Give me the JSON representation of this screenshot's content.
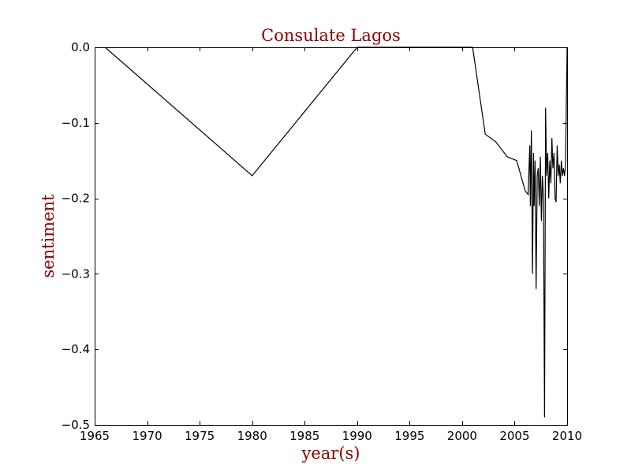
{
  "chart_data": {
    "type": "line",
    "title": "Consulate Lagos",
    "xlabel": "year(s)",
    "ylabel": "sentiment",
    "xlim": [
      1965,
      2010
    ],
    "ylim": [
      -0.5,
      0.0
    ],
    "grid": false,
    "xticks": [
      1965,
      1970,
      1975,
      1980,
      1985,
      1990,
      1995,
      2000,
      2005,
      2010
    ],
    "xtick_labels": [
      "1965",
      "1970",
      "1975",
      "1980",
      "1985",
      "1990",
      "1995",
      "2000",
      "2005",
      "2010"
    ],
    "yticks": [
      0.0,
      -0.1,
      -0.2,
      -0.3,
      -0.4,
      -0.5
    ],
    "ytick_labels": [
      "0.0",
      "−0.1",
      "−0.2",
      "−0.3",
      "−0.4",
      "−0.5"
    ],
    "colors": {
      "line": "#000000",
      "text": "#8b0000"
    },
    "series": [
      {
        "x": [
          1966,
          1980,
          1990,
          2001,
          2002.2,
          2003.2,
          2004.3,
          2005.2,
          2006.0,
          2006.3,
          2006.35,
          2006.45,
          2006.5,
          2006.6,
          2006.7,
          2006.8,
          2006.85,
          2006.95,
          2007.05,
          2007.15,
          2007.25,
          2007.35,
          2007.45,
          2007.55,
          2007.65,
          2007.75,
          2007.85,
          2007.95,
          2008.05,
          2008.15,
          2008.25,
          2008.35,
          2008.45,
          2008.55,
          2008.65,
          2008.75,
          2008.85,
          2008.95,
          2009.05,
          2009.15,
          2009.25,
          2009.35,
          2009.45,
          2009.55,
          2009.65,
          2009.75,
          2009.85,
          2010.0
        ],
        "y": [
          0.0,
          -0.17,
          0.0,
          0.0,
          -0.115,
          -0.125,
          -0.145,
          -0.15,
          -0.19,
          -0.195,
          -0.17,
          -0.13,
          -0.21,
          -0.11,
          -0.3,
          -0.14,
          -0.21,
          -0.15,
          -0.32,
          -0.17,
          -0.16,
          -0.21,
          -0.145,
          -0.23,
          -0.17,
          -0.2,
          -0.49,
          -0.08,
          -0.17,
          -0.14,
          -0.2,
          -0.15,
          -0.18,
          -0.12,
          -0.16,
          -0.14,
          -0.2,
          -0.205,
          -0.13,
          -0.17,
          -0.155,
          -0.18,
          -0.15,
          -0.17,
          -0.16,
          -0.17,
          -0.155,
          0.0
        ]
      }
    ]
  }
}
